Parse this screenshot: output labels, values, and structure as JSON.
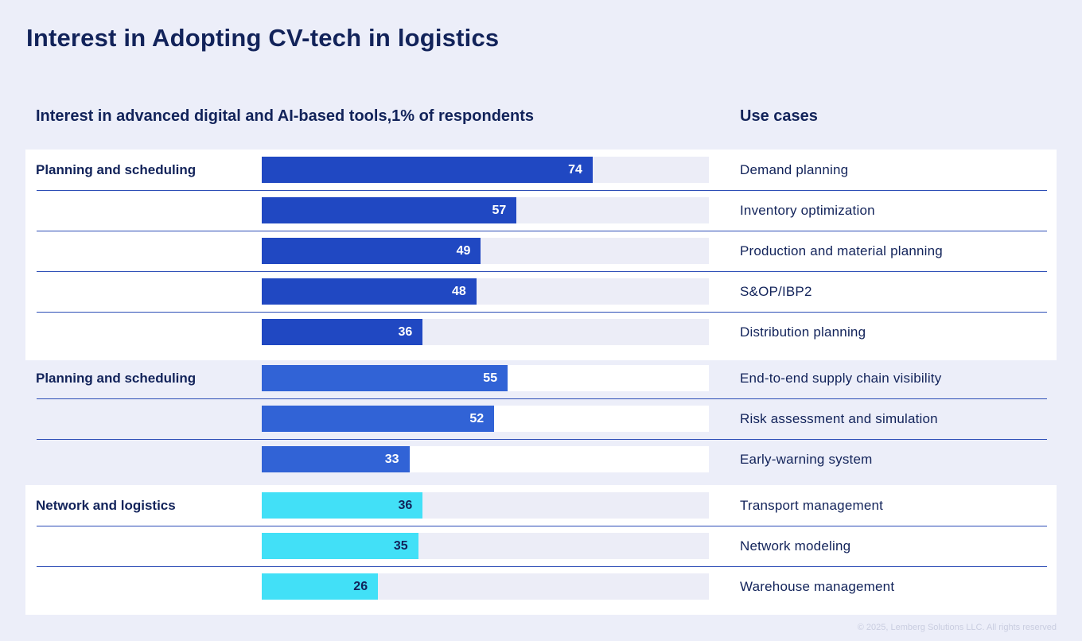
{
  "title": "Interest in Adopting CV-tech in logistics",
  "footer": "© 2025, Lemberg Solutions LLC. All rights reserved",
  "colors": {
    "group1": "#2048c2",
    "group2": "#3163d6",
    "group3": "#42e0f7",
    "track_tint": "#ecedf7",
    "track_white": "#ffffff",
    "text_light": "#ffffff",
    "text_dark": "#12235a"
  },
  "chart_data": {
    "type": "bar",
    "orientation": "horizontal",
    "title": "Interest in Adopting CV-tech in logistics",
    "xlabel": "Interest in advanced digital and AI-based tools,1% of respondents",
    "ylabel": "Use cases",
    "xlim": [
      0,
      100
    ],
    "groups": [
      {
        "label": "Planning and scheduling",
        "categories": [
          "Demand planning",
          "Inventory optimization",
          "Production and material planning",
          "S&OP/IBP2",
          "Distribution planning"
        ],
        "values": [
          74,
          57,
          49,
          48,
          36
        ]
      },
      {
        "label": "Planning and scheduling",
        "categories": [
          "End-to-end supply chain visibility",
          "Risk assessment and simulation",
          "Early-warning system"
        ],
        "values": [
          55,
          52,
          33
        ]
      },
      {
        "label": "Network and logistics",
        "categories": [
          "Transport management",
          "Network modeling",
          "Warehouse management"
        ],
        "values": [
          36,
          35,
          26
        ]
      }
    ]
  }
}
